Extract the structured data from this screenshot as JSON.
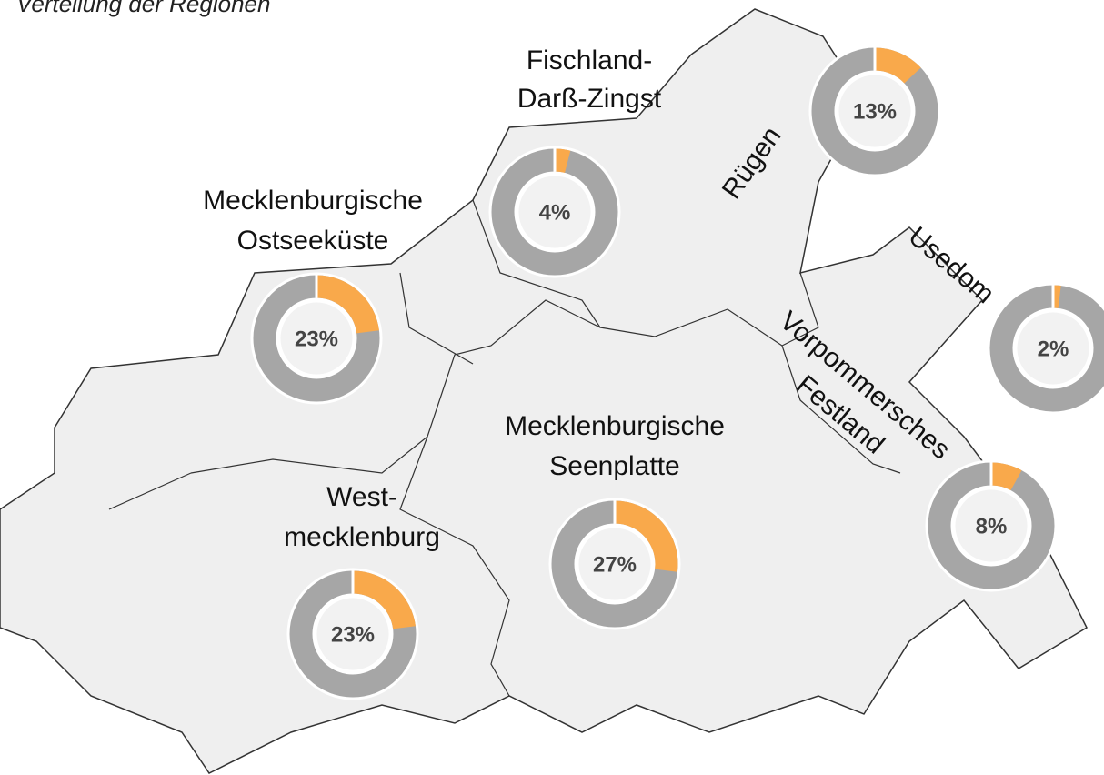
{
  "title": "Verteilung der Regionen",
  "regions": [
    {
      "name": [
        "Fischland-",
        "Darß-Zingst"
      ],
      "value": 4,
      "value_label": "4%"
    },
    {
      "name": [
        "Rügen"
      ],
      "value": 13,
      "value_label": "13%"
    },
    {
      "name": [
        "Mecklenburgische",
        "Ostseeküste"
      ],
      "value": 23,
      "value_label": "23%"
    },
    {
      "name": [
        "Usedom"
      ],
      "value": 2,
      "value_label": "2%"
    },
    {
      "name": [
        "Vorpommersches",
        "Festland"
      ],
      "value": 8,
      "value_label": "8%"
    },
    {
      "name": [
        "Mecklenburgische",
        "Seenplatte"
      ],
      "value": 27,
      "value_label": "27%"
    },
    {
      "name": [
        "West-",
        "mecklenburg"
      ],
      "value": 23,
      "value_label": "23%"
    }
  ],
  "colors": {
    "share": "#f9a94b",
    "rest": "#a6a6a6",
    "land": "#efefef"
  }
}
